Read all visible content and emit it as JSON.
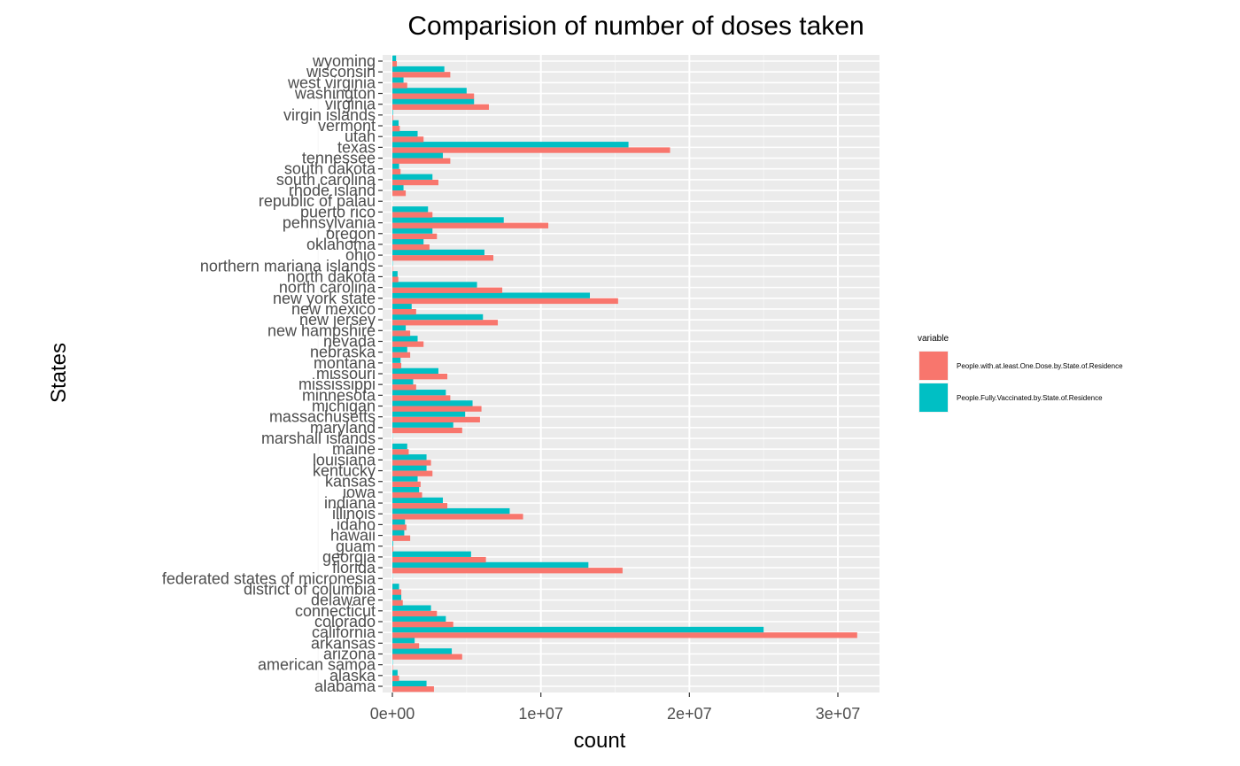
{
  "chart_data": {
    "type": "bar",
    "orientation": "horizontal",
    "title": "Comparision of number of doses taken",
    "xlabel": "count",
    "ylabel": "States",
    "xlim": [
      0,
      32500000
    ],
    "x_ticks": [
      0,
      10000000,
      20000000,
      30000000
    ],
    "x_tick_labels": [
      "0e+00",
      "1e+07",
      "2e+07",
      "3e+07"
    ],
    "grid": true,
    "legend": {
      "title": "variable",
      "position": "right"
    },
    "categories": [
      "alabama",
      "alaska",
      "american samoa",
      "arizona",
      "arkansas",
      "california",
      "colorado",
      "connecticut",
      "delaware",
      "district of columbia",
      "federated states of micronesia",
      "florida",
      "georgia",
      "guam",
      "hawaii",
      "idaho",
      "illinois",
      "indiana",
      "iowa",
      "kansas",
      "kentucky",
      "louisiana",
      "maine",
      "marshall islands",
      "maryland",
      "massachusetts",
      "michigan",
      "minnesota",
      "mississippi",
      "missouri",
      "montana",
      "nebraska",
      "nevada",
      "new hampshire",
      "new jersey",
      "new mexico",
      "new york state",
      "north carolina",
      "north dakota",
      "northern mariana islands",
      "ohio",
      "oklahoma",
      "oregon",
      "pennsylvania",
      "puerto rico",
      "republic of palau",
      "rhode island",
      "south carolina",
      "south dakota",
      "tennessee",
      "texas",
      "utah",
      "vermont",
      "virgin islands",
      "virginia",
      "washington",
      "west virginia",
      "wisconsin",
      "wyoming"
    ],
    "series": [
      {
        "name": "People.with.at.least.One.Dose.by.State.of.Residence",
        "color": "#F8766D",
        "values": [
          2800000,
          450000,
          30000,
          4700000,
          1800000,
          31300000,
          4100000,
          3000000,
          700000,
          600000,
          20000,
          15500000,
          6300000,
          60000,
          1200000,
          950000,
          8800000,
          3700000,
          2000000,
          1900000,
          2700000,
          2600000,
          1100000,
          20000,
          4700000,
          5900000,
          6000000,
          3900000,
          1600000,
          3700000,
          600000,
          1200000,
          2100000,
          1200000,
          7100000,
          1600000,
          15200000,
          7400000,
          400000,
          30000,
          6800000,
          2500000,
          3000000,
          10500000,
          2700000,
          10000,
          900000,
          3100000,
          550000,
          3900000,
          18700000,
          2100000,
          500000,
          50000,
          6500000,
          5500000,
          1000000,
          3900000,
          300000
        ]
      },
      {
        "name": "People.Fully.Vaccinated.by.State.of.Residence",
        "color": "#00BFC4",
        "values": [
          2300000,
          350000,
          25000,
          4000000,
          1500000,
          25000000,
          3600000,
          2600000,
          600000,
          450000,
          15000,
          13200000,
          5300000,
          50000,
          800000,
          850000,
          7900000,
          3400000,
          1800000,
          1700000,
          2300000,
          2300000,
          1000000,
          15000,
          4100000,
          4900000,
          5400000,
          3600000,
          1400000,
          3100000,
          550000,
          1000000,
          1700000,
          900000,
          6100000,
          1300000,
          13300000,
          5700000,
          350000,
          25000,
          6200000,
          2100000,
          2700000,
          7500000,
          2400000,
          8000,
          750000,
          2700000,
          450000,
          3400000,
          15900000,
          1700000,
          420000,
          40000,
          5500000,
          5000000,
          750000,
          3500000,
          250000
        ]
      }
    ]
  }
}
